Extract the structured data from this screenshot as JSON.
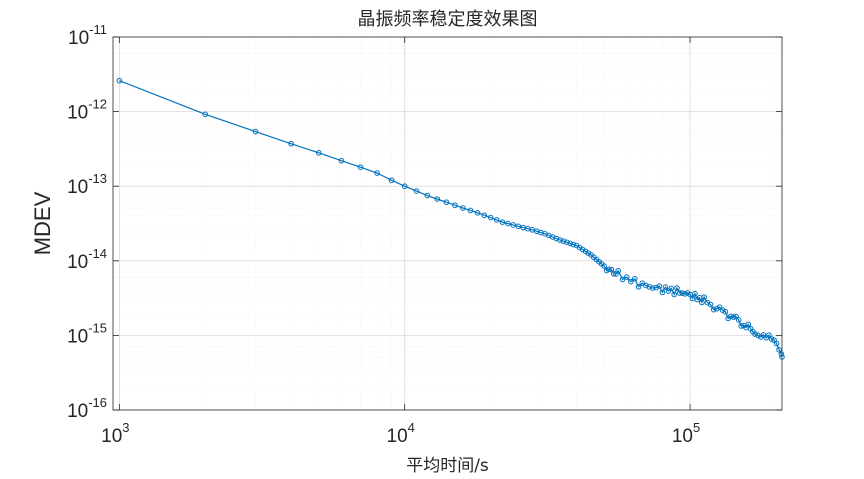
{
  "chart_data": {
    "type": "line",
    "title": "晶振频率稳定度效果图",
    "xlabel": "平均时间/s",
    "ylabel": "MDEV",
    "x_scale": "log",
    "y_scale": "log",
    "xlim": [
      950,
      210000
    ],
    "ylim": [
      1e-16,
      1e-11
    ],
    "grid": true,
    "minor_grid": true,
    "x_ticks": [
      {
        "base": "10",
        "exp": "3",
        "value": 1000
      },
      {
        "base": "10",
        "exp": "4",
        "value": 10000
      },
      {
        "base": "10",
        "exp": "5",
        "value": 100000
      }
    ],
    "y_ticks": [
      {
        "base": "10",
        "exp": "-11",
        "value": 1e-11
      },
      {
        "base": "10",
        "exp": "-12",
        "value": 1e-12
      },
      {
        "base": "10",
        "exp": "-13",
        "value": 1e-13
      },
      {
        "base": "10",
        "exp": "-14",
        "value": 1e-14
      },
      {
        "base": "10",
        "exp": "-15",
        "value": 1e-15
      },
      {
        "base": "10",
        "exp": "-16",
        "value": 1e-16
      }
    ],
    "series": [
      {
        "color": "#0072BD",
        "marker": "circle",
        "x": [
          1000,
          2000,
          3000,
          4000,
          5000,
          6000,
          7000,
          8000,
          9000,
          10000,
          12000,
          14000,
          16000,
          18000,
          20000,
          22000,
          25000,
          28000,
          31000,
          35000,
          40000,
          45000,
          50000,
          55000,
          60000,
          65000,
          70000,
          80000,
          90000,
          100000,
          110000,
          120000,
          130000,
          140000,
          150000,
          160000,
          170000,
          180000,
          190000,
          200000,
          205000,
          210000
        ],
        "y": [
          2.6e-12,
          9.2e-13,
          5.4e-13,
          3.7e-13,
          2.8e-13,
          2.2e-13,
          1.8e-13,
          1.5e-13,
          1.2e-13,
          1e-13,
          7.5e-14,
          6.1e-14,
          5.1e-14,
          4.4e-14,
          3.8e-14,
          3.3e-14,
          2.9e-14,
          2.6e-14,
          2.3e-14,
          1.9e-14,
          1.6e-14,
          1.2e-14,
          8.5e-15,
          6.8e-15,
          5.8e-15,
          5.1e-15,
          4.6e-15,
          4.2e-15,
          3.9e-15,
          3.5e-15,
          3e-15,
          2.5e-15,
          2.1e-15,
          1.8e-15,
          1.5e-15,
          1.25e-15,
          1.1e-15,
          1e-15,
          9e-16,
          7.5e-16,
          6.5e-16,
          5.3e-16
        ]
      }
    ]
  }
}
